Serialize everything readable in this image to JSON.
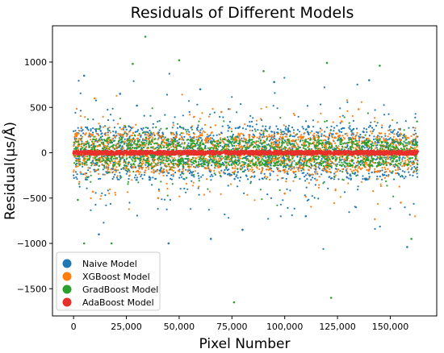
{
  "chart_data": {
    "type": "scatter",
    "title": "Residuals of Different Models",
    "xlabel": "Pixel Number",
    "ylabel": "Residual(μs/Å)",
    "xlim": [
      -10000,
      172000
    ],
    "ylim": [
      -1800,
      1400
    ],
    "x_ticks": [
      0,
      25000,
      50000,
      75000,
      100000,
      125000,
      150000
    ],
    "x_tick_labels": [
      "0",
      "25,000",
      "50,000",
      "75,000",
      "100,000",
      "125,000",
      "150,000"
    ],
    "y_ticks": [
      -1500,
      -1000,
      -500,
      0,
      500,
      1000
    ],
    "y_tick_labels": [
      "−1500",
      "−1000",
      "−500",
      "0",
      "500",
      "1000"
    ],
    "x_range": [
      0,
      163000
    ],
    "grid": false,
    "legend_position": "lower-left",
    "series": [
      {
        "name": "Naive Model",
        "color": "#1f77b4",
        "core_band": [
          -300,
          300
        ],
        "outliers": [
          [
            5000,
            850
          ],
          [
            12000,
            -900
          ],
          [
            30000,
            520
          ],
          [
            45000,
            -1000
          ],
          [
            60000,
            700
          ],
          [
            80000,
            -850
          ],
          [
            95000,
            780
          ],
          [
            110000,
            -700
          ],
          [
            140000,
            800
          ],
          [
            158000,
            -1040
          ],
          [
            65000,
            -950
          ],
          [
            22000,
            650
          ]
        ]
      },
      {
        "name": "XGBoost Model",
        "color": "#ff7f0e",
        "core_band": [
          -220,
          220
        ],
        "outliers": [
          [
            10000,
            600
          ],
          [
            40000,
            -500
          ],
          [
            70000,
            450
          ],
          [
            100000,
            -450
          ],
          [
            135000,
            480
          ],
          [
            155000,
            -550
          ]
        ]
      },
      {
        "name": "GradBoost Model",
        "color": "#2ca02c",
        "core_band": [
          -150,
          150
        ],
        "outliers": [
          [
            34000,
            1280
          ],
          [
            50000,
            1020
          ],
          [
            28000,
            980
          ],
          [
            120000,
            990
          ],
          [
            145000,
            960
          ],
          [
            76000,
            -1650
          ],
          [
            122000,
            -1600
          ],
          [
            18000,
            -1000
          ],
          [
            5000,
            -1000
          ],
          [
            90000,
            900
          ],
          [
            160000,
            -950
          ],
          [
            2000,
            -520
          ]
        ]
      },
      {
        "name": "AdaBoost Model",
        "color": "#e8302a",
        "core_band": [
          -20,
          20
        ],
        "outliers": []
      }
    ]
  }
}
